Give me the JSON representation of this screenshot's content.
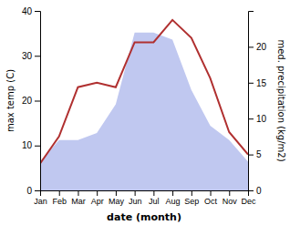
{
  "chart_data": {
    "type": "line",
    "xlabel": "date (month)",
    "ylabel": "max temp (C)",
    "y2label": "med. precipitation (kg/m2)",
    "categories": [
      "Jan",
      "Feb",
      "Mar",
      "Apr",
      "May",
      "Jun",
      "Jul",
      "Aug",
      "Sep",
      "Oct",
      "Nov",
      "Dec"
    ],
    "series": [
      {
        "type": "area",
        "axis": "y2",
        "color": "#c0c8f0",
        "values": [
          4,
          7,
          7,
          8,
          12,
          22,
          22,
          21,
          14,
          9,
          7,
          4
        ]
      },
      {
        "type": "line",
        "color": "#b03030",
        "values": [
          6,
          12,
          23,
          24,
          23,
          33,
          33,
          38,
          34,
          25,
          13,
          8
        ]
      }
    ],
    "ylim": [
      0,
      40
    ],
    "yticks": [
      0,
      10,
      20,
      30,
      40
    ],
    "y2lim": [
      0,
      25
    ],
    "y2ticks": [
      0,
      5,
      10,
      15,
      20
    ],
    "grid": false
  }
}
